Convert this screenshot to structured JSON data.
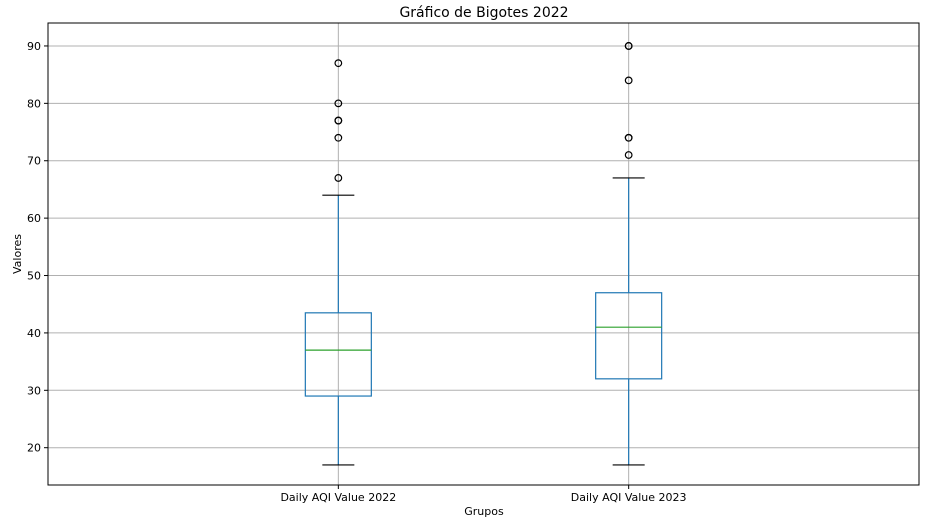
{
  "chart_data": {
    "type": "box",
    "title": "Gráfico de Bigotes 2022",
    "xlabel": "Grupos",
    "ylabel": "Valores",
    "ylim": [
      13.5,
      94
    ],
    "yticks": [
      20,
      30,
      40,
      50,
      60,
      70,
      80,
      90
    ],
    "grid": true,
    "categories": [
      "Daily AQI Value 2022",
      "Daily AQI Value 2023"
    ],
    "boxes": [
      {
        "label": "Daily AQI Value 2022",
        "whisker_low": 17,
        "q1": 29,
        "median": 37,
        "q3": 43.5,
        "whisker_high": 64,
        "fliers": [
          67,
          74,
          77,
          77,
          80,
          87
        ]
      },
      {
        "label": "Daily AQI Value 2023",
        "whisker_low": 17,
        "q1": 32,
        "median": 41,
        "q3": 47,
        "whisker_high": 67,
        "fliers": [
          71,
          74,
          74,
          84,
          90,
          90
        ]
      }
    ],
    "colors": {
      "box": "#1f77b4",
      "median": "#2ca02c",
      "cap": "#000000",
      "grid": "#b0b0b0"
    }
  }
}
